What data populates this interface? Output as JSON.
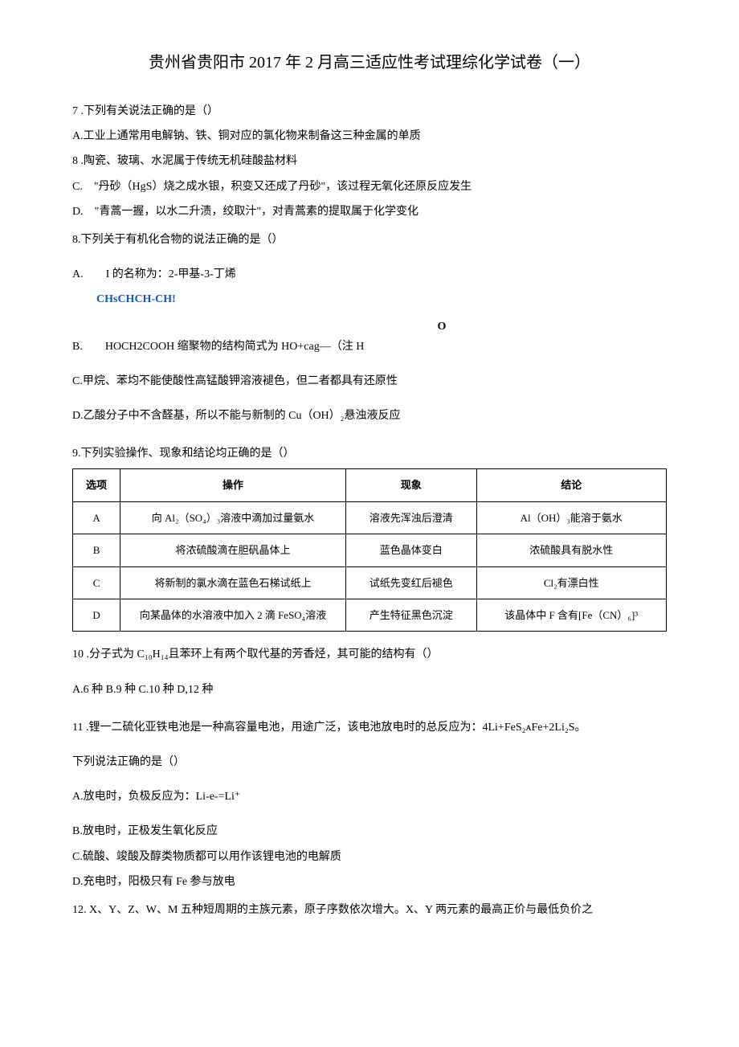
{
  "title": "贵州省贵阳市 2017 年 2 月高三适应性考试理综化学试卷（一）",
  "q7": {
    "stem": "7 .下列有关说法正确的是（）",
    "optA": "A.工业上通常用电解钠、铁、铜对应的氯化物来制备这三种金属的单质",
    "optB": "8 .陶瓷、玻璃、水泥属于传统无机硅酸盐材料",
    "optC": "C.　\"丹砂（HgS）烧之成水银，积变又还成了丹砂\"，该过程无氧化还原反应发生",
    "optD": "D.　\"青蒿一握，以水二升渍，绞取汁\"，对青蒿素的提取属于化学变化"
  },
  "q8": {
    "stem": "8.下列关于有机化合物的说法正确的是（）",
    "optA_prefix": "A.　　I 的名称为：2-甲基-3-丁烯",
    "optA_chem": "CHsCHCH-CH!",
    "optB_o": "O",
    "optB": "B.　　HOCH2COOH 缩聚物的结构简式为 HO+cag—（注 H",
    "optC": "C.甲烷、苯均不能使酸性高锰酸钾溶液褪色，但二者都具有还原性",
    "optD": "D.乙酸分子中不含醛基，所以不能与新制的 Cu（OH）₂悬浊液反应"
  },
  "q9": {
    "stem": "9.下列实验操作、现象和结论均正确的是（）",
    "headers": [
      "选项",
      "操作",
      "现象",
      "结论"
    ],
    "rows": [
      [
        "A",
        "向 Al₂（SO₄）₃溶液中滴加过量氨水",
        "溶液先浑浊后澄清",
        "Al（OH）₃能溶于氨水"
      ],
      [
        "B",
        "将浓硫酸滴在胆矾晶体上",
        "蓝色晶体变白",
        "浓硫酸具有脱水性"
      ],
      [
        "C",
        "将新制的氯水滴在蓝色石梯试纸上",
        "试纸先变红后褪色",
        "Cl₂有漂白性"
      ],
      [
        "D",
        "向某晶体的水溶液中加入 2 滴 FeSO₄溶液",
        "产生特征黑色沉淀",
        "该晶体中 F 含有[Fe（CN）₆]³"
      ]
    ]
  },
  "q10": {
    "stem": "10 .分子式为 C₁₀H₁₄且苯环上有两个取代基的芳香烃，其可能的结构有（）",
    "options": "A.6 种 B.9 种 C.10 种 D,12 种"
  },
  "q11": {
    "stem": "11 .锂一二硫化亚铁电池是一种高容量电池，用途广泛，该电池放电时的总反应为：4Li+FeS₂ᴀFe+2Li₂S。",
    "sub": "下列说法正确的是（）",
    "optA": "A.放电时，负极反应为：Li-e-=Li⁺",
    "optB": "B.放电时，正极发生氧化反应",
    "optC": "C.硫酸、竣酸及醇类物质都可以用作该锂电池的电解质",
    "optD": "D.充电时，阳极只有 Fe 参与放电"
  },
  "q12": {
    "stem": "12. X、Y、Z、W、M 五种短周期的主族元素，原子序数依次增大。X、Y 两元素的最高正价与最低负价之"
  },
  "styles": {
    "body_width": 920,
    "body_padding": "60px 90px",
    "font_size": 14,
    "title_font_size": 20,
    "table_font_size": 13,
    "chem_color": "#1155cc",
    "text_color": "#000000",
    "bg_color": "#ffffff",
    "border_color": "#000000"
  }
}
